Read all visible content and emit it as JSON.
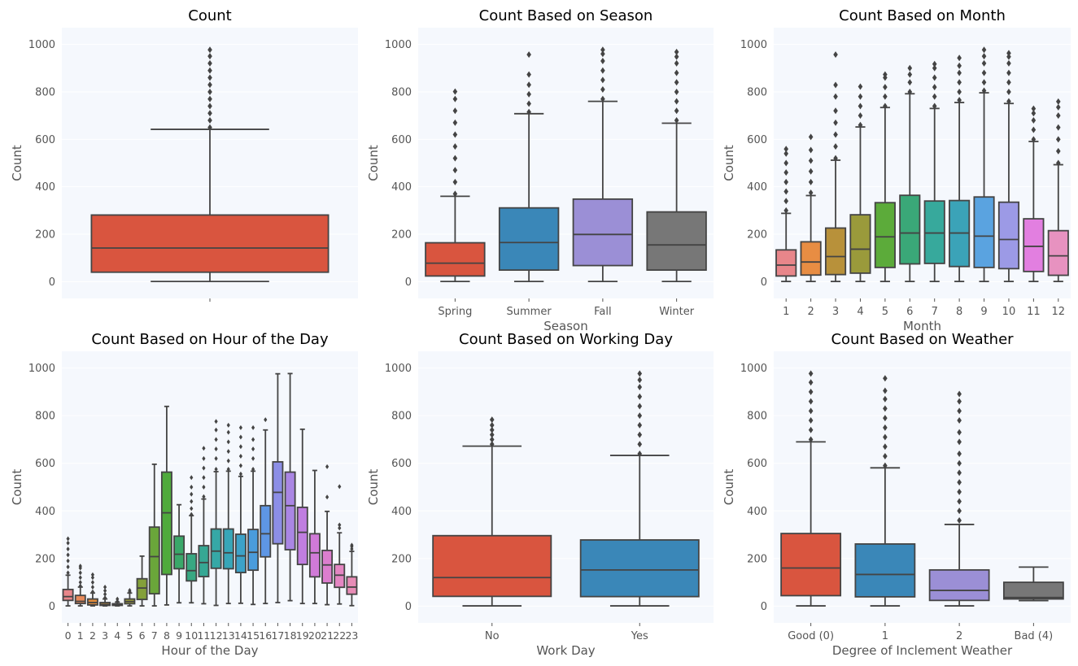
{
  "chart_data": [
    {
      "type": "box",
      "title": "Count",
      "xlabel": "",
      "ylabel": "Count",
      "ylim": [
        0,
        1000
      ],
      "yticks": [
        0,
        200,
        400,
        600,
        800,
        1000
      ],
      "categories": [
        ""
      ],
      "colors": [
        "#d9553f"
      ],
      "boxes": [
        {
          "min": 1,
          "q1": 40,
          "median": 142,
          "q3": 281,
          "max": 642,
          "outliers": [
            650,
            680,
            710,
            740,
            770,
            800,
            830,
            860,
            890,
            920,
            950,
            977
          ]
        }
      ]
    },
    {
      "type": "box",
      "title": "Count Based on Season",
      "xlabel": "Season",
      "ylabel": "Count",
      "ylim": [
        0,
        1000
      ],
      "yticks": [
        0,
        200,
        400,
        600,
        800,
        1000
      ],
      "categories": [
        "Spring",
        "Summer",
        "Fall",
        "Winter"
      ],
      "colors": [
        "#d9553f",
        "#3a87b8",
        "#9b8fd6",
        "#777777"
      ],
      "boxes": [
        {
          "min": 1,
          "q1": 24,
          "median": 78,
          "q3": 164,
          "max": 360,
          "outliers": [
            370,
            420,
            470,
            520,
            570,
            620,
            670,
            720,
            770,
            801
          ]
        },
        {
          "min": 1,
          "q1": 49,
          "median": 165,
          "q3": 311,
          "max": 708,
          "outliers": [
            715,
            750,
            790,
            830,
            873,
            957
          ]
        },
        {
          "min": 1,
          "q1": 68,
          "median": 199,
          "q3": 348,
          "max": 760,
          "outliers": [
            770,
            810,
            850,
            890,
            930,
            960,
            977
          ]
        },
        {
          "min": 1,
          "q1": 49,
          "median": 155,
          "q3": 294,
          "max": 668,
          "outliers": [
            680,
            720,
            760,
            800,
            840,
            880,
            920,
            948,
            968
          ]
        }
      ]
    },
    {
      "type": "box",
      "title": "Count Based on Month",
      "xlabel": "Month",
      "ylabel": "Count",
      "ylim": [
        0,
        1000
      ],
      "yticks": [
        0,
        200,
        400,
        600,
        800,
        1000
      ],
      "categories": [
        "1",
        "2",
        "3",
        "4",
        "5",
        "6",
        "7",
        "8",
        "9",
        "10",
        "11",
        "12"
      ],
      "colors": [
        "#e8868a",
        "#e88d43",
        "#b8913a",
        "#9a9a3b",
        "#5cab3a",
        "#3aa878",
        "#37a99c",
        "#3ba3b8",
        "#5aa3e0",
        "#9c9ae6",
        "#e27fe0",
        "#e792c0"
      ],
      "boxes": [
        {
          "min": 1,
          "q1": 24,
          "median": 70,
          "q3": 134,
          "max": 288,
          "outliers": [
            300,
            340,
            380,
            420,
            460,
            500,
            540,
            559
          ]
        },
        {
          "min": 1,
          "q1": 28,
          "median": 83,
          "q3": 168,
          "max": 363,
          "outliers": [
            375,
            420,
            465,
            510,
            555,
            610
          ]
        },
        {
          "min": 1,
          "q1": 30,
          "median": 106,
          "q3": 226,
          "max": 512,
          "outliers": [
            520,
            570,
            620,
            670,
            720,
            780,
            829,
            957
          ]
        },
        {
          "min": 1,
          "q1": 36,
          "median": 137,
          "q3": 282,
          "max": 652,
          "outliers": [
            660,
            700,
            740,
            780,
            822
          ]
        },
        {
          "min": 1,
          "q1": 60,
          "median": 189,
          "q3": 333,
          "max": 734,
          "outliers": [
            740,
            780,
            820,
            860,
            873
          ]
        },
        {
          "min": 1,
          "q1": 75,
          "median": 205,
          "q3": 364,
          "max": 792,
          "outliers": [
            800,
            840,
            873,
            900
          ]
        },
        {
          "min": 1,
          "q1": 77,
          "median": 205,
          "q3": 340,
          "max": 730,
          "outliers": [
            740,
            780,
            820,
            860,
            900,
            917
          ]
        },
        {
          "min": 1,
          "q1": 64,
          "median": 205,
          "q3": 342,
          "max": 755,
          "outliers": [
            765,
            800,
            840,
            880,
            910,
            943
          ]
        },
        {
          "min": 1,
          "q1": 60,
          "median": 192,
          "q3": 357,
          "max": 796,
          "outliers": [
            805,
            840,
            880,
            920,
            950,
            977
          ]
        },
        {
          "min": 1,
          "q1": 55,
          "median": 178,
          "q3": 335,
          "max": 751,
          "outliers": [
            760,
            800,
            840,
            880,
            920,
            948,
            963
          ]
        },
        {
          "min": 1,
          "q1": 43,
          "median": 149,
          "q3": 265,
          "max": 591,
          "outliers": [
            600,
            640,
            680,
            710,
            729
          ]
        },
        {
          "min": 1,
          "q1": 27,
          "median": 109,
          "q3": 215,
          "max": 493,
          "outliers": [
            500,
            550,
            600,
            650,
            700,
            735,
            759
          ]
        }
      ]
    },
    {
      "type": "box",
      "title": "Count Based on Hour of the Day",
      "xlabel": "Hour of the Day",
      "ylabel": "Count",
      "ylim": [
        0,
        1000
      ],
      "yticks": [
        0,
        200,
        400,
        600,
        800,
        1000
      ],
      "categories": [
        "0",
        "1",
        "2",
        "3",
        "4",
        "5",
        "6",
        "7",
        "8",
        "9",
        "10",
        "11",
        "12",
        "13",
        "14",
        "15",
        "16",
        "17",
        "18",
        "19",
        "20",
        "21",
        "22",
        "23"
      ],
      "colors": [
        "#e8868a",
        "#e88a5a",
        "#e08a3a",
        "#c8903a",
        "#b0963a",
        "#9a9a3a",
        "#84a03a",
        "#6aa63a",
        "#4faa3c",
        "#3aa86a",
        "#38a882",
        "#36a894",
        "#36a8a6",
        "#38a6b8",
        "#3ca2c8",
        "#4a9cdc",
        "#5e96e4",
        "#8c8ee6",
        "#aa86e4",
        "#c07ee0",
        "#d07ad8",
        "#dc7ece",
        "#e486c2",
        "#e78cb6"
      ],
      "boxes": [
        {
          "min": 1,
          "q1": 24,
          "median": 40,
          "q3": 70,
          "max": 130,
          "outliers": [
            140,
            165,
            190,
            215,
            240,
            265,
            283
          ]
        },
        {
          "min": 1,
          "q1": 11,
          "median": 20,
          "q3": 45,
          "max": 80,
          "outliers": [
            85,
            100,
            120,
            140,
            160,
            168
          ]
        },
        {
          "min": 1,
          "q1": 5,
          "median": 15,
          "q3": 30,
          "max": 55,
          "outliers": [
            60,
            80,
            100,
            120,
            132
          ]
        },
        {
          "min": 1,
          "q1": 3,
          "median": 7,
          "q3": 15,
          "max": 30,
          "outliers": [
            35,
            50,
            65,
            80
          ]
        },
        {
          "min": 1,
          "q1": 3,
          "median": 6,
          "q3": 10,
          "max": 17,
          "outliers": [
            20,
            30
          ]
        },
        {
          "min": 1,
          "q1": 10,
          "median": 19,
          "q3": 30,
          "max": 55,
          "outliers": [
            60,
            66
          ]
        },
        {
          "min": 1,
          "q1": 28,
          "median": 76,
          "q3": 115,
          "max": 210
        },
        {
          "min": 1,
          "q1": 52,
          "median": 208,
          "q3": 332,
          "max": 596
        },
        {
          "min": 5,
          "q1": 133,
          "median": 392,
          "q3": 563,
          "max": 839
        },
        {
          "min": 14,
          "q1": 157,
          "median": 218,
          "q3": 294,
          "max": 426
        },
        {
          "min": 14,
          "q1": 106,
          "median": 149,
          "q3": 220,
          "max": 380,
          "outliers": [
            385,
            410,
            440,
            470,
            500,
            540
          ]
        },
        {
          "min": 10,
          "q1": 124,
          "median": 183,
          "q3": 254,
          "max": 450,
          "outliers": [
            460,
            500,
            540,
            580,
            620,
            663
          ]
        },
        {
          "min": 3,
          "q1": 159,
          "median": 231,
          "q3": 324,
          "max": 565,
          "outliers": [
            575,
            620,
            660,
            700,
            740,
            776
          ]
        },
        {
          "min": 11,
          "q1": 157,
          "median": 224,
          "q3": 324,
          "max": 567,
          "outliers": [
            575,
            610,
            650,
            690,
            730,
            760
          ]
        },
        {
          "min": 12,
          "q1": 141,
          "median": 211,
          "q3": 302,
          "max": 545,
          "outliers": [
            555,
            590,
            630,
            670,
            710,
            750
          ]
        },
        {
          "min": 7,
          "q1": 151,
          "median": 226,
          "q3": 322,
          "max": 567,
          "outliers": [
            575,
            620,
            660,
            700,
            750
          ]
        },
        {
          "min": 11,
          "q1": 207,
          "median": 304,
          "q3": 422,
          "max": 740,
          "outliers": [
            783
          ]
        },
        {
          "min": 15,
          "q1": 262,
          "median": 478,
          "q3": 606,
          "max": 976
        },
        {
          "min": 23,
          "q1": 237,
          "median": 422,
          "q3": 563,
          "max": 977
        },
        {
          "min": 11,
          "q1": 175,
          "median": 310,
          "q3": 415,
          "max": 743
        },
        {
          "min": 11,
          "q1": 123,
          "median": 224,
          "q3": 304,
          "max": 570
        },
        {
          "min": 6,
          "q1": 97,
          "median": 173,
          "q3": 234,
          "max": 398,
          "outliers": [
            458,
            586
          ]
        },
        {
          "min": 9,
          "q1": 79,
          "median": 130,
          "q3": 175,
          "max": 308,
          "outliers": [
            328,
            341,
            502
          ]
        },
        {
          "min": 2,
          "q1": 50,
          "median": 80,
          "q3": 123,
          "max": 230,
          "outliers": [
            240,
            250,
            256
          ]
        }
      ]
    },
    {
      "type": "box",
      "title": "Count Based on Working Day",
      "xlabel": "Work Day",
      "ylabel": "Count",
      "ylim": [
        0,
        1000
      ],
      "yticks": [
        0,
        200,
        400,
        600,
        800,
        1000
      ],
      "categories": [
        "No",
        "Yes"
      ],
      "colors": [
        "#d9553f",
        "#3a87b8"
      ],
      "boxes": [
        {
          "min": 1,
          "q1": 41,
          "median": 120,
          "q3": 296,
          "max": 672,
          "outliers": [
            680,
            700,
            720,
            740,
            760,
            783
          ]
        },
        {
          "min": 1,
          "q1": 40,
          "median": 152,
          "q3": 278,
          "max": 633,
          "outliers": [
            640,
            680,
            720,
            760,
            800,
            840,
            880,
            920,
            950,
            977
          ]
        }
      ]
    },
    {
      "type": "box",
      "title": "Count Based on Weather",
      "xlabel": "Degree of Inclement Weather",
      "ylabel": "Count",
      "ylim": [
        0,
        1000
      ],
      "yticks": [
        0,
        200,
        400,
        600,
        800,
        1000
      ],
      "categories": [
        "Good (0)",
        "1",
        "2",
        "Bad (4)"
      ],
      "colors": [
        "#d9553f",
        "#3a87b8",
        "#9b8fd6",
        "#777777"
      ],
      "boxes": [
        {
          "min": 1,
          "q1": 44,
          "median": 160,
          "q3": 305,
          "max": 690,
          "outliers": [
            700,
            740,
            780,
            820,
            860,
            900,
            940,
            977
          ]
        },
        {
          "min": 1,
          "q1": 39,
          "median": 133,
          "q3": 261,
          "max": 581,
          "outliers": [
            590,
            630,
            670,
            710,
            750,
            790,
            830,
            870,
            905,
            957
          ]
        },
        {
          "min": 1,
          "q1": 24,
          "median": 66,
          "q3": 152,
          "max": 343,
          "outliers": [
            360,
            400,
            440,
            480,
            520,
            560,
            600,
            640,
            690,
            730,
            780,
            820,
            860,
            891
          ]
        },
        {
          "min": 23,
          "q1": 30,
          "median": 36,
          "q3": 100,
          "max": 164
        }
      ]
    }
  ]
}
